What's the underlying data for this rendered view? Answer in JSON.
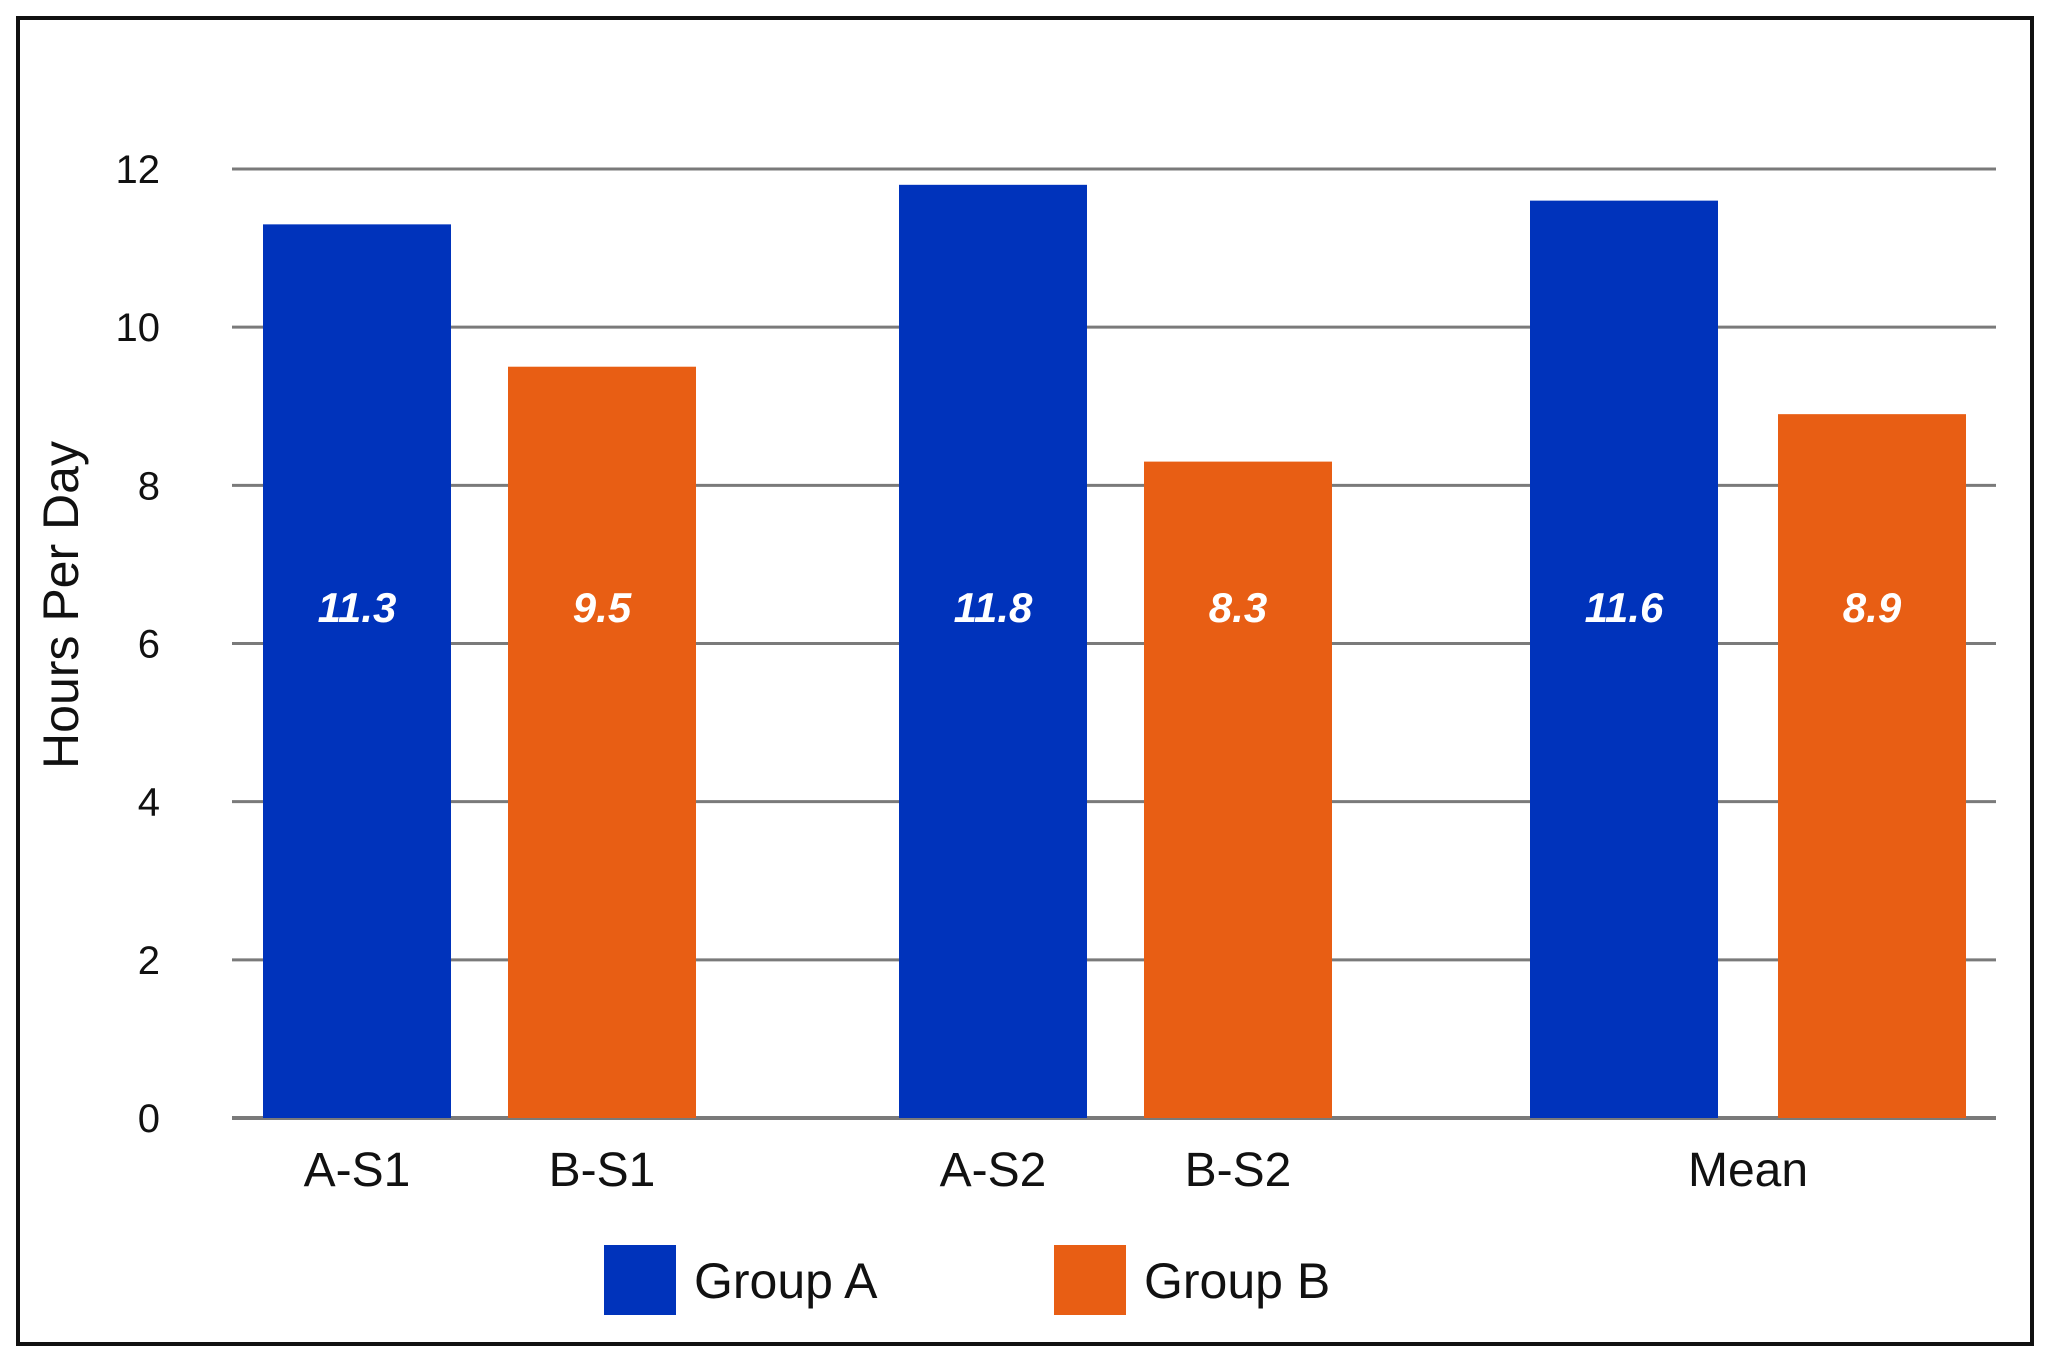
{
  "chart_data": {
    "type": "bar",
    "categories": [
      "A-S1",
      "B-S1",
      "A-S2",
      "B-S2",
      "Mean"
    ],
    "ylabel": "Hours Per Day",
    "xlabel": "",
    "ylim": [
      0,
      12
    ],
    "yticks": [
      "0",
      "2",
      "4",
      "6",
      "8",
      "10",
      "12"
    ],
    "grid": true,
    "legend_position": "bottom",
    "series": [
      {
        "name": "Group A",
        "color": "#0033BB"
      },
      {
        "name": "Group B",
        "color": "#E85E14"
      }
    ],
    "bars": [
      {
        "series": 0,
        "value": 11.3,
        "label": "11.3"
      },
      {
        "series": 1,
        "value": 9.5,
        "label": "9.5"
      },
      {
        "series": 0,
        "value": 11.8,
        "label": "11.8"
      },
      {
        "series": 1,
        "value": 8.3,
        "label": "8.3"
      },
      {
        "series": 0,
        "value": 11.6,
        "label": "11.6"
      },
      {
        "series": 1,
        "value": 8.9,
        "label": "8.9"
      }
    ]
  }
}
